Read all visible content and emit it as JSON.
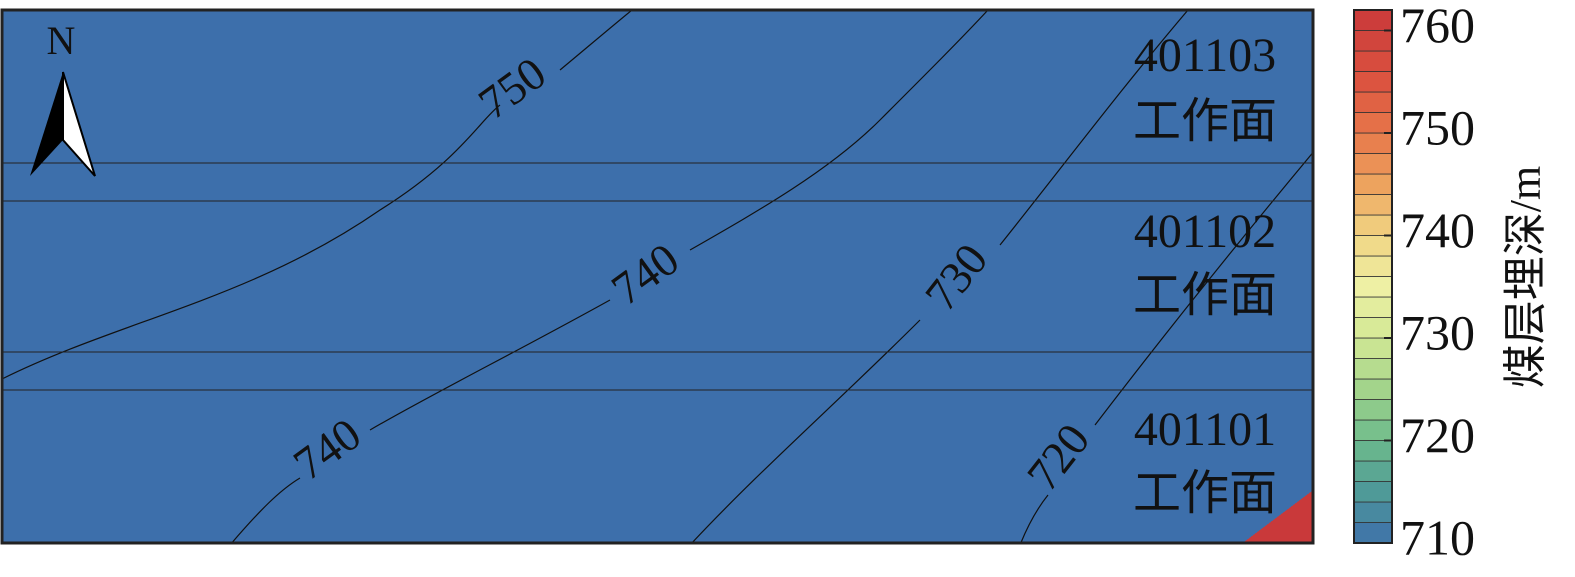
{
  "north": "N",
  "workfaces": [
    {
      "id": "401103",
      "label": "工作面"
    },
    {
      "id": "401102",
      "label": "工作面"
    },
    {
      "id": "401101",
      "label": "工作面"
    }
  ],
  "contour_labels": [
    750,
    740,
    740,
    730,
    720
  ],
  "colorbar": {
    "label": "煤层埋深/m",
    "range": [
      710,
      762
    ],
    "ticks": [
      710,
      720,
      730,
      740,
      750,
      760
    ],
    "levels": [
      710,
      712,
      714,
      716,
      718,
      720,
      722,
      724,
      726,
      728,
      730,
      732,
      734,
      736,
      738,
      740,
      742,
      744,
      746,
      748,
      750,
      752,
      754,
      756,
      758,
      760,
      762
    ],
    "colors": [
      {
        "value": 710,
        "color": "#3d6fab"
      },
      {
        "value": 715,
        "color": "#4f9a98"
      },
      {
        "value": 720,
        "color": "#6dbb8c"
      },
      {
        "value": 725,
        "color": "#a3d48b"
      },
      {
        "value": 730,
        "color": "#d3e895"
      },
      {
        "value": 735,
        "color": "#eef0a4"
      },
      {
        "value": 740,
        "color": "#f1d584"
      },
      {
        "value": 745,
        "color": "#eda35e"
      },
      {
        "value": 750,
        "color": "#e7774a"
      },
      {
        "value": 755,
        "color": "#dc5440"
      },
      {
        "value": 762,
        "color": "#c9393a"
      }
    ]
  }
}
